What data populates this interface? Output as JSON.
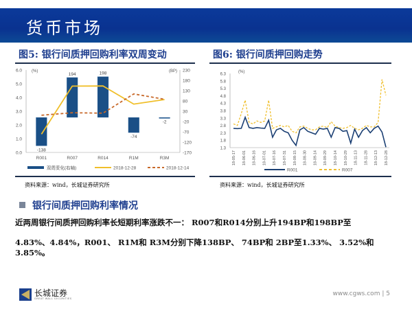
{
  "header": {
    "title": "货币市场"
  },
  "figure5": {
    "title": "图5: 银行间质押回购利率双周变动",
    "source": "资料来源：wind，长城证券研究所"
  },
  "figure6": {
    "title": "图6: 银行间质押回购走势",
    "source": "资料来源：wind，长城证券研究所"
  },
  "section": {
    "heading": "银行间质押回购利率情况",
    "paragraph_line1": "近两周银行间质押回购利率长短期利率涨跌不一： R007和R014分别上升194BP和198BP至",
    "paragraph_line2": "4.83%、4.84%，R001、 R1M和 R3M分别下降138BP、 74BP和 2BP至1.33%、 3.52%和3.85%。"
  },
  "footer": {
    "logo_text": "长城证券",
    "logo_subtext": "GREAT WALL SECURITIES",
    "url": "www.cgws.com",
    "separator": "|",
    "page": "5"
  },
  "colors": {
    "banner": "#0b3a9a",
    "bar": "#1a4f86",
    "line_1228": "#f0bf2a",
    "line_1214": "#c8692a",
    "r001": "#1b3f73",
    "r007": "#f0c030"
  },
  "chart_data": [
    {
      "type": "bar+line",
      "categories": [
        "R001",
        "R007",
        "R014",
        "R1M",
        "R3M"
      ],
      "left_unit": "(%)",
      "right_unit": "(BP)",
      "left_ylim": [
        0,
        6
      ],
      "left_ticks": [
        "0.0",
        "1.0",
        "2.0",
        "3.0",
        "4.0",
        "5.0",
        "6.0"
      ],
      "right_ylim": [
        -170,
        230
      ],
      "right_ticks": [
        "-170",
        "-120",
        "-70",
        "-20",
        "30",
        "80",
        "130",
        "180",
        "230"
      ],
      "series": [
        {
          "name": "双周变化(右轴)",
          "type": "bar",
          "axis": "right",
          "values": [
            -138,
            194,
            198,
            -74,
            -2
          ]
        },
        {
          "name": "2018-12-28",
          "type": "line",
          "axis": "left",
          "values": [
            1.33,
            4.83,
            4.84,
            3.52,
            3.85
          ]
        },
        {
          "name": "2018-12-14",
          "type": "line",
          "axis": "left",
          "dashed": true,
          "values": [
            2.71,
            2.89,
            2.86,
            4.26,
            3.87
          ]
        }
      ],
      "bar_labels": [
        "-138",
        "194",
        "198",
        "-74",
        "-2"
      ]
    },
    {
      "type": "line",
      "unit": "(%)",
      "ylim": [
        1.3,
        6.3
      ],
      "y_ticks": [
        "1.3",
        "1.8",
        "2.3",
        "2.8",
        "3.3",
        "3.8",
        "4.3",
        "4.8",
        "5.3",
        "5.8",
        "6.3"
      ],
      "x_ticks": [
        "18-05-17",
        "18-06-01",
        "18-06-16",
        "18-07-01",
        "18-07-16",
        "18-07-31",
        "18-08-15",
        "18-08-30",
        "18-09-14",
        "18-09-29",
        "18-10-14",
        "18-10-29",
        "18-11-13",
        "18-11-28",
        "18-12-13",
        "18-12-28"
      ],
      "series": [
        {
          "name": "R001",
          "values": [
            2.6,
            2.58,
            2.6,
            3.35,
            2.65,
            2.6,
            2.65,
            2.62,
            2.6,
            3.15,
            2.0,
            2.5,
            2.6,
            2.4,
            2.3,
            1.8,
            1.45,
            2.5,
            2.65,
            2.4,
            2.3,
            2.2,
            2.6,
            2.55,
            2.6,
            2.0,
            2.65,
            2.6,
            2.4,
            2.45,
            1.6,
            2.55,
            2.0,
            2.45,
            2.65,
            2.3,
            2.6,
            2.75,
            2.35,
            1.33
          ]
        },
        {
          "name": "R007",
          "dashed": true,
          "values": [
            2.9,
            2.8,
            3.6,
            4.5,
            3.0,
            2.9,
            3.1,
            3.0,
            3.1,
            4.5,
            2.6,
            2.7,
            2.8,
            2.7,
            2.8,
            2.4,
            2.3,
            2.7,
            2.75,
            2.6,
            2.5,
            2.5,
            2.7,
            2.75,
            2.65,
            3.05,
            2.75,
            2.65,
            2.6,
            2.65,
            2.8,
            2.6,
            2.5,
            2.6,
            2.8,
            2.7,
            2.7,
            3.0,
            5.9,
            4.83
          ]
        }
      ]
    }
  ]
}
